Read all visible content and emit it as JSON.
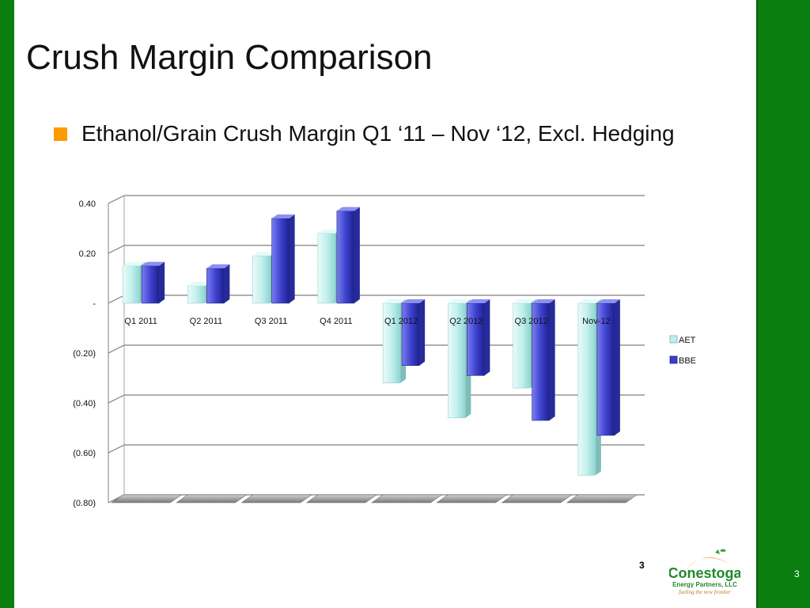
{
  "slide": {
    "title": "Crush Margin Comparison",
    "bullet": "Ethanol/Grain Crush Margin Q1 ‘11 – Nov ‘12, Excl. Hedging",
    "page_number_center": "3",
    "page_number_right": "3",
    "logo": {
      "name": "Conestoga",
      "line2": "Energy Partners, LLC",
      "tagline": "fueling the new frontier"
    }
  },
  "colors": {
    "frame_green": "#0a7f10",
    "bullet_orange": "#ff9900",
    "aet": "#bff0ee",
    "bbe": "#4a4ed6"
  },
  "chart_data": {
    "type": "bar",
    "categories": [
      "Q1 2011",
      "Q2 2011",
      "Q3 2011",
      "Q4 2011",
      "Q1 2012",
      "Q2 2012",
      "Q3 2012",
      "Nov-12"
    ],
    "series": [
      {
        "name": "AET",
        "values": [
          0.15,
          0.07,
          0.19,
          0.28,
          -0.32,
          -0.46,
          -0.34,
          -0.69
        ]
      },
      {
        "name": "BBE",
        "values": [
          0.15,
          0.14,
          0.34,
          0.37,
          -0.25,
          -0.29,
          -0.47,
          -0.53
        ]
      }
    ],
    "ylim": [
      -0.8,
      0.4
    ],
    "yticks": [
      0.4,
      0.2,
      0.0,
      -0.2,
      -0.4,
      -0.6,
      -0.8
    ],
    "ytick_labels": [
      "0.40",
      "0.20",
      "-",
      "(0.20)",
      "(0.40)",
      "(0.60)",
      "(0.80)"
    ],
    "grid": true,
    "legend_position": "right",
    "style": "3d"
  }
}
